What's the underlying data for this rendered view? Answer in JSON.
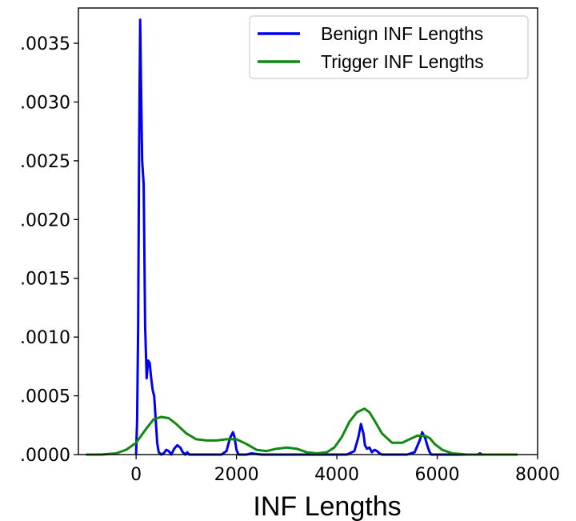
{
  "chart_data": {
    "type": "line",
    "title": "",
    "xlabel": "INF Lengths",
    "ylabel": "",
    "xlim": [
      -1150,
      8000
    ],
    "ylim": [
      0,
      0.0038
    ],
    "x_ticks": [
      0,
      2000,
      4000,
      6000,
      8000
    ],
    "x_tick_labels": [
      "0",
      "2000",
      "4000",
      "6000",
      "8000"
    ],
    "y_ticks": [
      0,
      0.0005,
      0.001,
      0.0015,
      0.002,
      0.0025,
      0.003,
      0.0035
    ],
    "y_tick_labels": [
      ".0000",
      ".0005",
      ".0010",
      ".0015",
      ".0020",
      ".0025",
      ".0030",
      ".0035"
    ],
    "grid": false,
    "legend_position": "top-right",
    "series": [
      {
        "name": "Benign INF Lengths",
        "color": "#0000ee",
        "x": [
          0,
          20,
          40,
          60,
          80,
          100,
          120,
          150,
          180,
          210,
          240,
          270,
          300,
          330,
          360,
          390,
          420,
          450,
          500,
          550,
          600,
          650,
          700,
          760,
          820,
          880,
          930,
          980,
          1020,
          1060,
          1100,
          1150,
          1300,
          1500,
          1700,
          1800,
          1870,
          1930,
          1960,
          2000,
          2040,
          2100,
          2200,
          2300,
          2500,
          2800,
          3100,
          3400,
          3700,
          4000,
          4200,
          4350,
          4430,
          4480,
          4530,
          4560,
          4600,
          4650,
          4700,
          4750,
          4800,
          4850,
          4900,
          5000,
          5200,
          5400,
          5550,
          5650,
          5700,
          5760,
          5800,
          5840,
          5880,
          5950,
          6050,
          6300,
          6600,
          6800,
          6850,
          6900,
          7000
        ],
        "y": [
          0.0,
          0.0003,
          0.0011,
          0.0026,
          0.0037,
          0.0031,
          0.0025,
          0.0023,
          0.0011,
          0.00065,
          0.0008,
          0.00078,
          0.00065,
          0.00055,
          0.0005,
          0.0003,
          0.0001,
          2e-05,
          0.0,
          1e-05,
          4e-05,
          3e-05,
          0.0,
          5e-05,
          8e-05,
          6e-05,
          2e-05,
          0.0,
          2e-05,
          0.0,
          0.0,
          0.0,
          0.0,
          0.0,
          0.0,
          3e-05,
          0.00014,
          0.00019,
          0.00015,
          4e-05,
          0.0,
          0.0,
          0.0,
          1e-05,
          0.0,
          0.0,
          0.0,
          0.0,
          0.0,
          0.0,
          0.0,
          3e-05,
          0.00015,
          0.00026,
          0.00018,
          8e-05,
          5e-05,
          6e-05,
          2e-05,
          4e-05,
          3e-05,
          1e-05,
          0.0,
          0.0,
          0.0,
          0.0,
          2e-05,
          0.00012,
          0.00019,
          0.00014,
          8e-05,
          3e-05,
          0.0,
          0.0,
          0.0,
          0.0,
          0.0,
          0.0,
          1e-05,
          0.0,
          0.0
        ]
      },
      {
        "name": "Trigger INF Lengths",
        "color": "#118811",
        "x": [
          -1000,
          -700,
          -400,
          -200,
          0,
          200,
          350,
          500,
          650,
          800,
          1000,
          1200,
          1400,
          1600,
          1800,
          2000,
          2200,
          2400,
          2600,
          2800,
          3000,
          3200,
          3400,
          3600,
          3800,
          3950,
          4100,
          4250,
          4400,
          4550,
          4650,
          4750,
          4900,
          5100,
          5300,
          5450,
          5600,
          5750,
          5850,
          5950,
          6100,
          6300,
          6600,
          7000,
          7600
        ],
        "y": [
          0.0,
          0.0,
          1e-05,
          4e-05,
          0.0001,
          0.00022,
          0.0003,
          0.00032,
          0.00031,
          0.00026,
          0.00018,
          0.00013,
          0.00012,
          0.00012,
          0.00013,
          0.00013,
          9e-05,
          4e-05,
          3e-05,
          5e-05,
          6e-05,
          5e-05,
          2e-05,
          1e-05,
          2e-05,
          6e-05,
          0.00015,
          0.00028,
          0.00036,
          0.00039,
          0.00036,
          0.00029,
          0.00018,
          0.0001,
          0.0001,
          0.00013,
          0.00016,
          0.00016,
          0.00014,
          9e-05,
          4e-05,
          1e-05,
          0.0,
          0.0,
          0.0
        ]
      }
    ]
  }
}
